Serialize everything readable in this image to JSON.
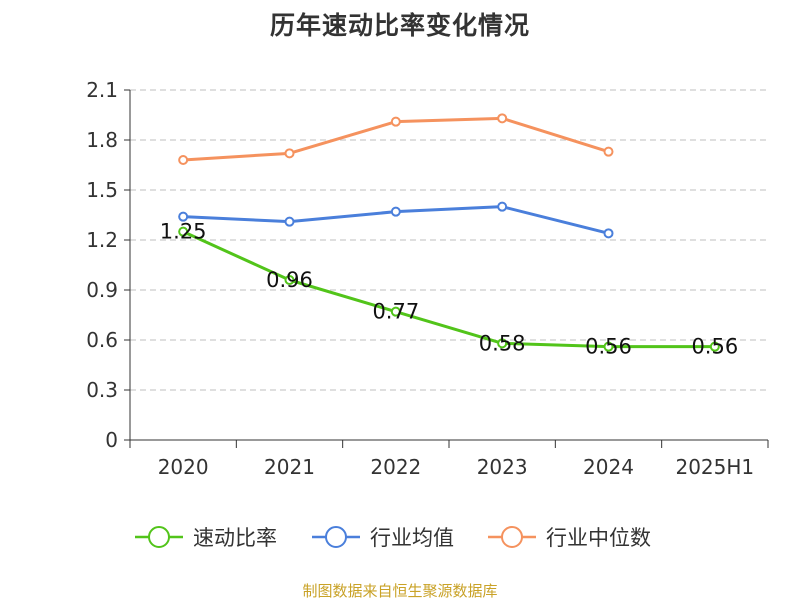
{
  "chart_data": {
    "type": "line",
    "title": "历年速动比率变化情况",
    "categories": [
      "2020",
      "2021",
      "2022",
      "2023",
      "2024",
      "2025H1"
    ],
    "ylim": [
      0,
      2.1
    ],
    "yticks": [
      "0",
      "0.3",
      "0.6",
      "0.9",
      "1.2",
      "1.5",
      "1.8",
      "2.1"
    ],
    "grid": true,
    "legend_position": "bottom",
    "series": [
      {
        "name": "速动比率",
        "color": "#52c41a",
        "values": [
          1.25,
          0.96,
          0.77,
          0.58,
          0.56,
          0.56
        ],
        "labels": [
          "1.25",
          "0.96",
          "0.77",
          "0.58",
          "0.56",
          "0.56"
        ]
      },
      {
        "name": "行业均值",
        "color": "#4a7fdb",
        "values": [
          1.34,
          1.31,
          1.37,
          1.4,
          1.24,
          null
        ]
      },
      {
        "name": "行业中位数",
        "color": "#f5925e",
        "values": [
          1.68,
          1.72,
          1.91,
          1.93,
          1.73,
          null
        ]
      }
    ]
  },
  "source": "制图数据来自恒生聚源数据库"
}
